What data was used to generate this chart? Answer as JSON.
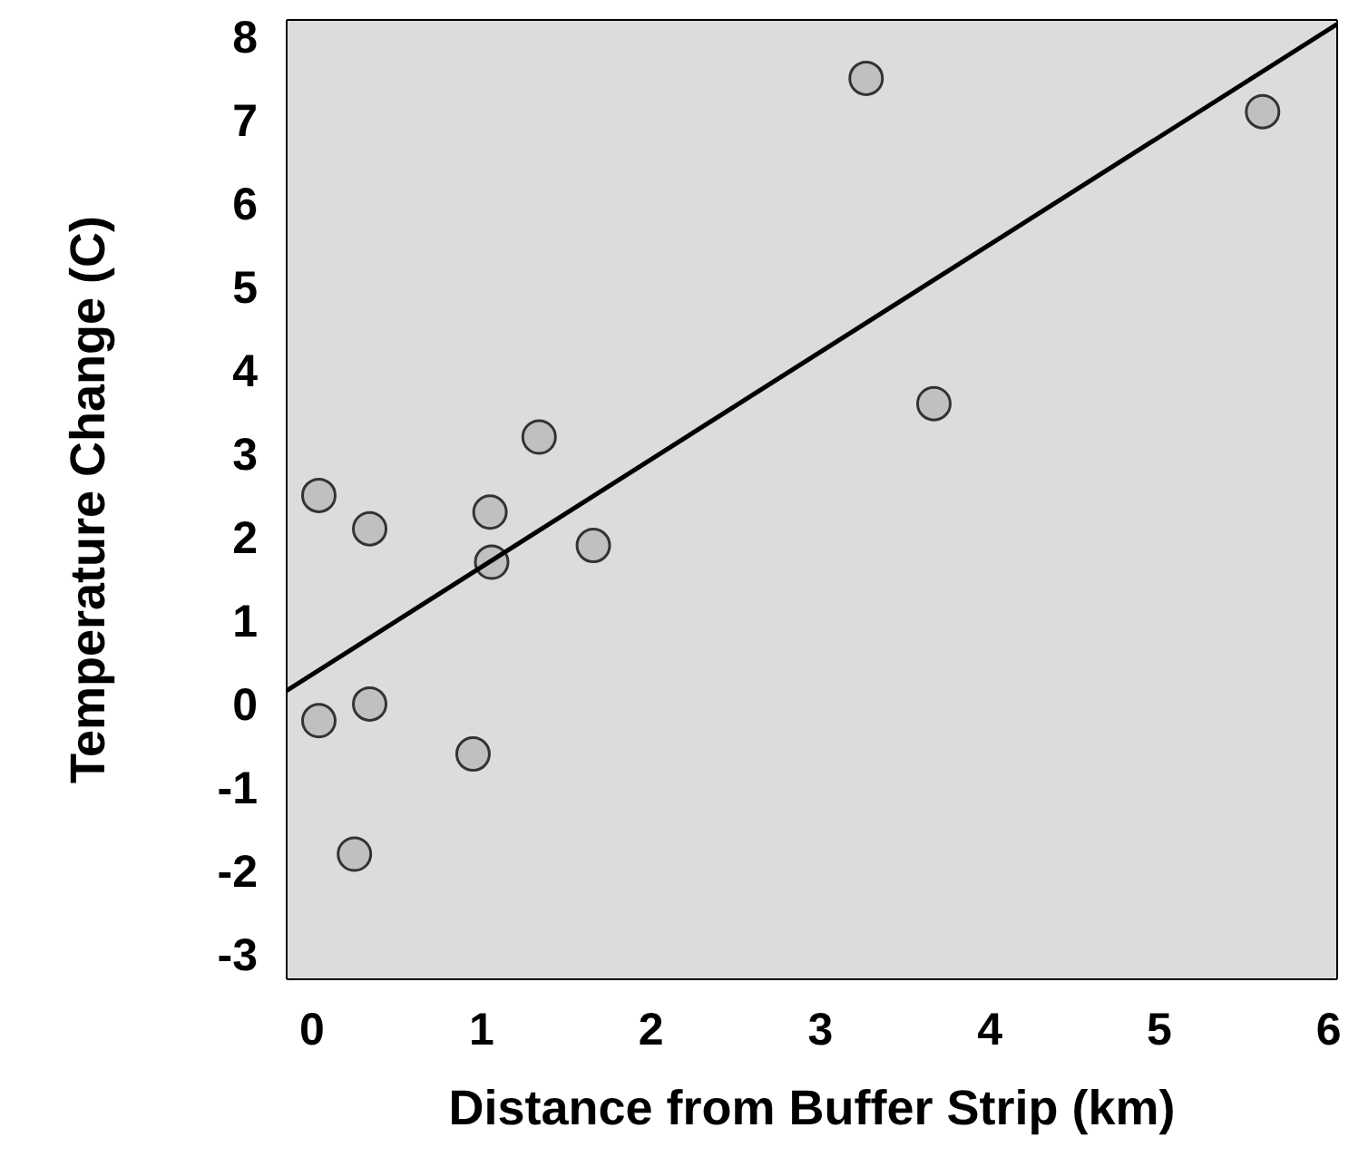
{
  "chart_data": {
    "type": "scatter",
    "xlabel": "Distance from Buffer Strip (km)",
    "ylabel": "Temperature Change (C)",
    "xlim": [
      -0.15,
      6.05
    ],
    "ylim": [
      -3.3,
      8.2
    ],
    "xticks": [
      0,
      1,
      2,
      3,
      4,
      5,
      6
    ],
    "yticks": [
      -3,
      -2,
      -1,
      0,
      1,
      2,
      3,
      4,
      5,
      6,
      7,
      8
    ],
    "grid": false,
    "legend": false,
    "marker": "circle",
    "series": [
      {
        "type": "scatter",
        "color": "#c0c0c0",
        "x": [
          0.04,
          0.34,
          1.05,
          1.06,
          1.34,
          1.66,
          3.27,
          3.67,
          5.61,
          0.04,
          0.34,
          0.95,
          0.25
        ],
        "values": [
          2.5,
          2.1,
          2.3,
          1.7,
          3.2,
          1.9,
          7.5,
          3.6,
          7.1,
          -0.2,
          0.0,
          -0.6,
          -1.8
        ]
      },
      {
        "type": "line",
        "color": "#000000",
        "marker": "none",
        "x": [
          -0.15,
          6.05
        ],
        "values": [
          0.16,
          8.15
        ]
      }
    ]
  }
}
